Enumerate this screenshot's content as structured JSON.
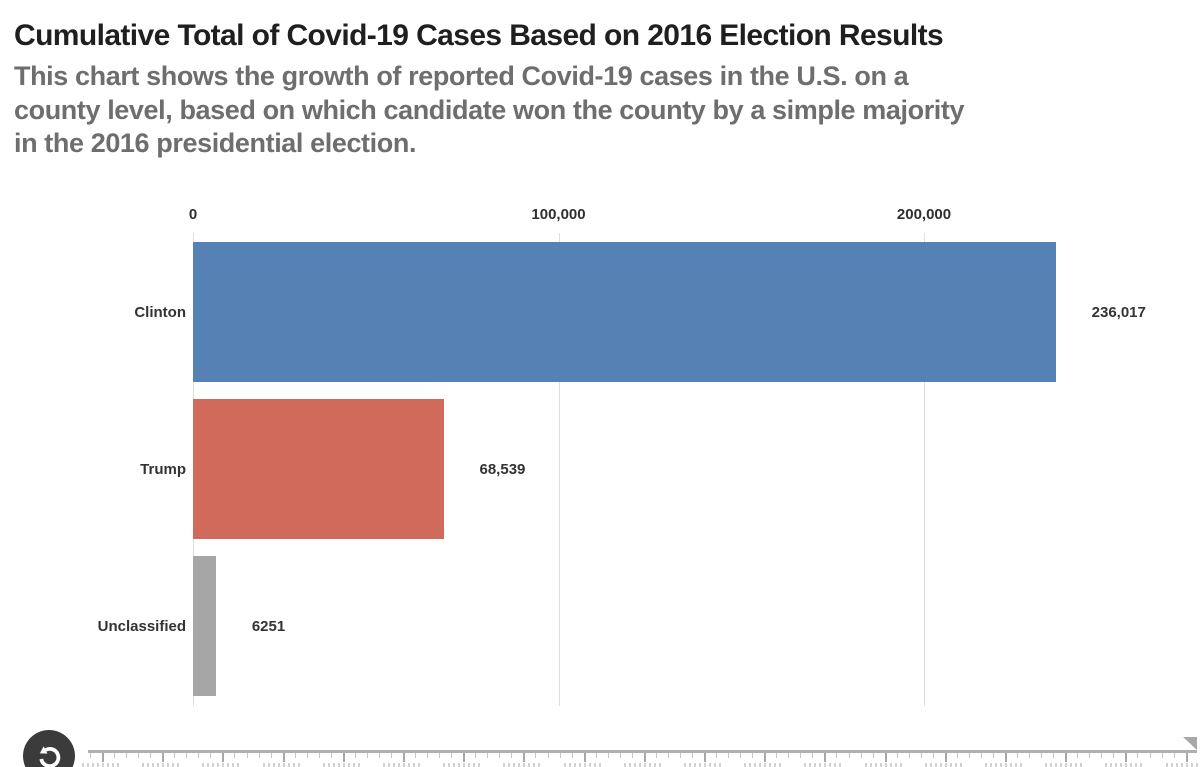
{
  "header": {
    "title": "Cumulative Total of Covid-19 Cases Based on 2016 Election Results",
    "subtitle_lines": [
      "This chart shows the growth of reported Covid-19 cases in the U.S. on a",
      "county level, based on which candidate won the county by a simple majority",
      "in the 2016 presidential election."
    ]
  },
  "chart_data": {
    "type": "bar",
    "orientation": "horizontal",
    "title": "Cumulative Total of Covid-19 Cases Based on 2016 Election Results",
    "subtitle": "This chart shows the growth of reported Covid-19 cases in the U.S. on a county level, based on which candidate won the county by a simple majority in the 2016 presidential election.",
    "categories": [
      "Clinton",
      "Trump",
      "Unclassified"
    ],
    "values": [
      236017,
      68539,
      6251
    ],
    "value_labels": [
      "236,017",
      "68,539",
      "6251"
    ],
    "bar_colors": [
      "#5581B4",
      "#D06A5B",
      "#A6A6A6"
    ],
    "xlabel": "",
    "ylabel": "",
    "xlim": [
      0,
      275000
    ],
    "x_ticks": [
      0,
      100000,
      200000
    ],
    "x_tick_labels": [
      "0",
      "100,000",
      "200,000"
    ],
    "grid": true,
    "legend": "none"
  },
  "timeline": {
    "replay_icon": "counterclockwise-replay-arrow",
    "handle_position": "right-end",
    "colors": {
      "ruler": "#b0b0b0",
      "handle": "#a8a8a8",
      "replay_background": "#3b3b3b",
      "replay_glyph": "#ffffff"
    }
  },
  "colors": {
    "background": "#ffffff",
    "title": "#1f1f1f",
    "subtitle": "#6e6e6e",
    "labels": "#333333",
    "gridline": "#dedede",
    "clinton": "#5581B4",
    "trump": "#D06A5B",
    "unclassified": "#A6A6A6"
  }
}
